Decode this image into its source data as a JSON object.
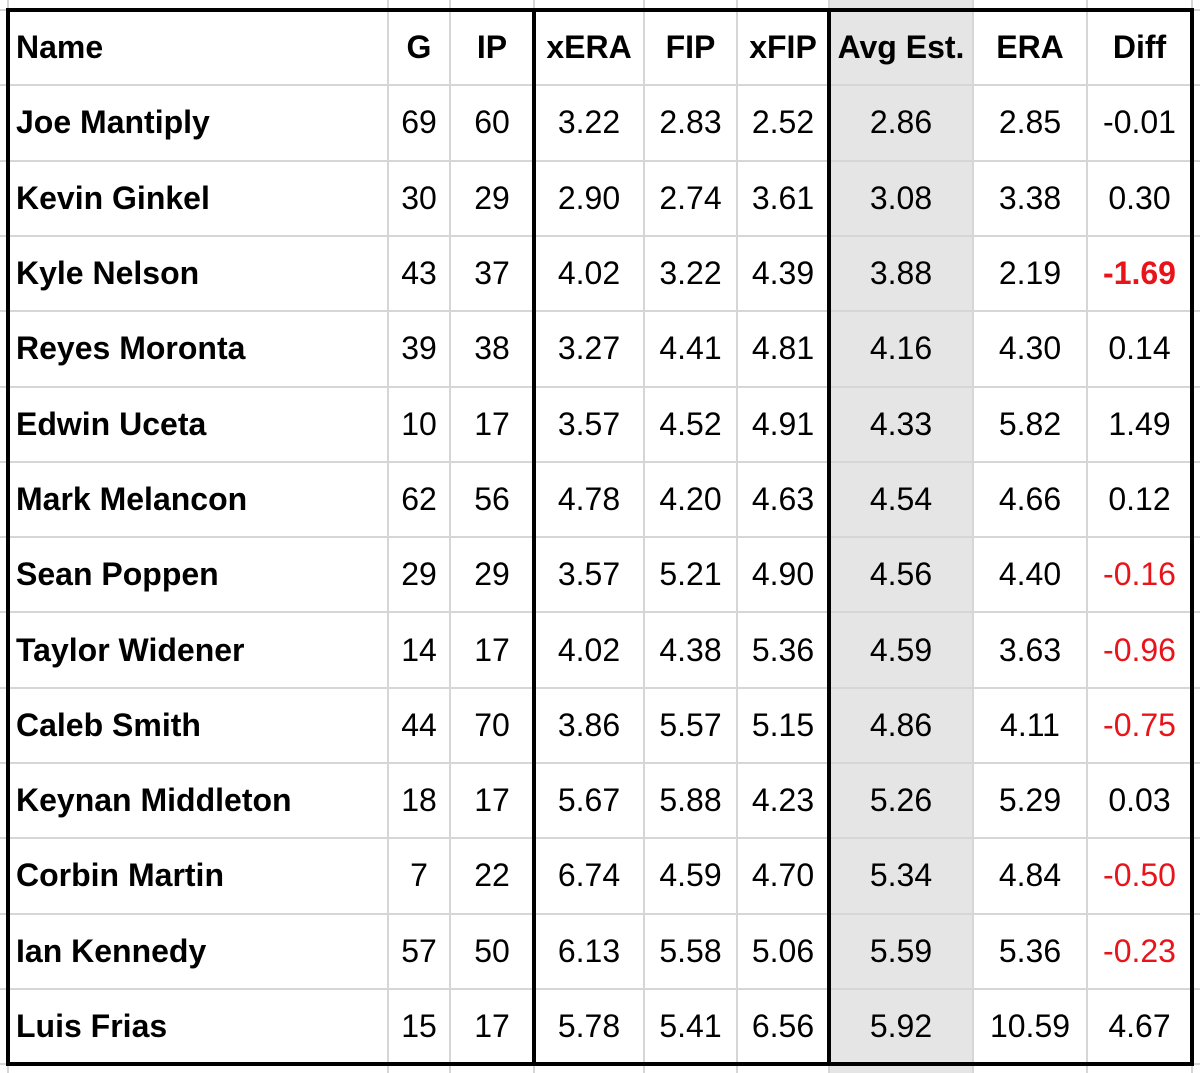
{
  "table": {
    "headers": [
      "Name",
      "G",
      "IP",
      "xERA",
      "FIP",
      "xFIP",
      "Avg Est.",
      "ERA",
      "Diff"
    ],
    "rows": [
      {
        "name": "Joe Mantiply",
        "g": "69",
        "ip": "60",
        "xera": "3.22",
        "fip": "2.83",
        "xfip": "2.52",
        "avg": "2.86",
        "era": "2.85",
        "diff": "-0.01",
        "diff_style": "normal"
      },
      {
        "name": "Kevin Ginkel",
        "g": "30",
        "ip": "29",
        "xera": "2.90",
        "fip": "2.74",
        "xfip": "3.61",
        "avg": "3.08",
        "era": "3.38",
        "diff": "0.30",
        "diff_style": "normal"
      },
      {
        "name": "Kyle Nelson",
        "g": "43",
        "ip": "37",
        "xera": "4.02",
        "fip": "3.22",
        "xfip": "4.39",
        "avg": "3.88",
        "era": "2.19",
        "diff": "-1.69",
        "diff_style": "red-bold"
      },
      {
        "name": "Reyes Moronta",
        "g": "39",
        "ip": "38",
        "xera": "3.27",
        "fip": "4.41",
        "xfip": "4.81",
        "avg": "4.16",
        "era": "4.30",
        "diff": "0.14",
        "diff_style": "normal"
      },
      {
        "name": "Edwin Uceta",
        "g": "10",
        "ip": "17",
        "xera": "3.57",
        "fip": "4.52",
        "xfip": "4.91",
        "avg": "4.33",
        "era": "5.82",
        "diff": "1.49",
        "diff_style": "normal"
      },
      {
        "name": "Mark Melancon",
        "g": "62",
        "ip": "56",
        "xera": "4.78",
        "fip": "4.20",
        "xfip": "4.63",
        "avg": "4.54",
        "era": "4.66",
        "diff": "0.12",
        "diff_style": "normal"
      },
      {
        "name": "Sean Poppen",
        "g": "29",
        "ip": "29",
        "xera": "3.57",
        "fip": "5.21",
        "xfip": "4.90",
        "avg": "4.56",
        "era": "4.40",
        "diff": "-0.16",
        "diff_style": "red"
      },
      {
        "name": "Taylor Widener",
        "g": "14",
        "ip": "17",
        "xera": "4.02",
        "fip": "4.38",
        "xfip": "5.36",
        "avg": "4.59",
        "era": "3.63",
        "diff": "-0.96",
        "diff_style": "red"
      },
      {
        "name": "Caleb Smith",
        "g": "44",
        "ip": "70",
        "xera": "3.86",
        "fip": "5.57",
        "xfip": "5.15",
        "avg": "4.86",
        "era": "4.11",
        "diff": "-0.75",
        "diff_style": "red"
      },
      {
        "name": "Keynan Middleton",
        "g": "18",
        "ip": "17",
        "xera": "5.67",
        "fip": "5.88",
        "xfip": "4.23",
        "avg": "5.26",
        "era": "5.29",
        "diff": "0.03",
        "diff_style": "normal"
      },
      {
        "name": "Corbin Martin",
        "g": "7",
        "ip": "22",
        "xera": "6.74",
        "fip": "4.59",
        "xfip": "4.70",
        "avg": "5.34",
        "era": "4.84",
        "diff": "-0.50",
        "diff_style": "red"
      },
      {
        "name": "Ian Kennedy",
        "g": "57",
        "ip": "50",
        "xera": "6.13",
        "fip": "5.58",
        "xfip": "5.06",
        "avg": "5.59",
        "era": "5.36",
        "diff": "-0.23",
        "diff_style": "red"
      },
      {
        "name": "Luis Frias",
        "g": "15",
        "ip": "17",
        "xera": "5.78",
        "fip": "5.41",
        "xfip": "6.56",
        "avg": "5.92",
        "era": "10.59",
        "diff": "4.67",
        "diff_style": "normal"
      }
    ]
  },
  "colors": {
    "grid": "#d6d6d6",
    "border": "#000000",
    "shaded_column": "#e5e5e5",
    "negative": "#e8141a"
  }
}
